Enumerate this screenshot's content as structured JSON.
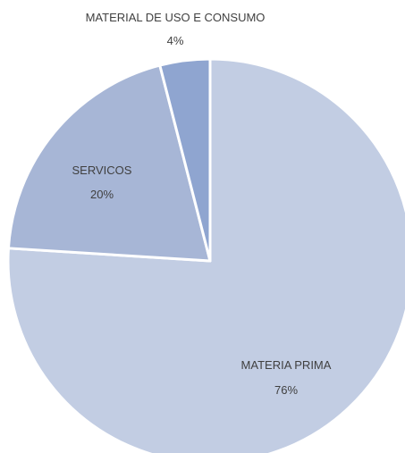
{
  "chart_data": {
    "type": "pie",
    "title": "",
    "slices": [
      {
        "label": "MATERIA PRIMA",
        "value": 76,
        "display": "76%",
        "color": "#c2cde3"
      },
      {
        "label": "SERVICOS",
        "value": 20,
        "display": "20%",
        "color": "#a7b6d6"
      },
      {
        "label": "MATERIAL DE USO E CONSUMO",
        "value": 4,
        "display": "4%",
        "color": "#8fa5d0"
      }
    ],
    "start_angle_deg": 0,
    "direction": "clockwise",
    "slice_border_color": "#ffffff",
    "legend": "none"
  }
}
